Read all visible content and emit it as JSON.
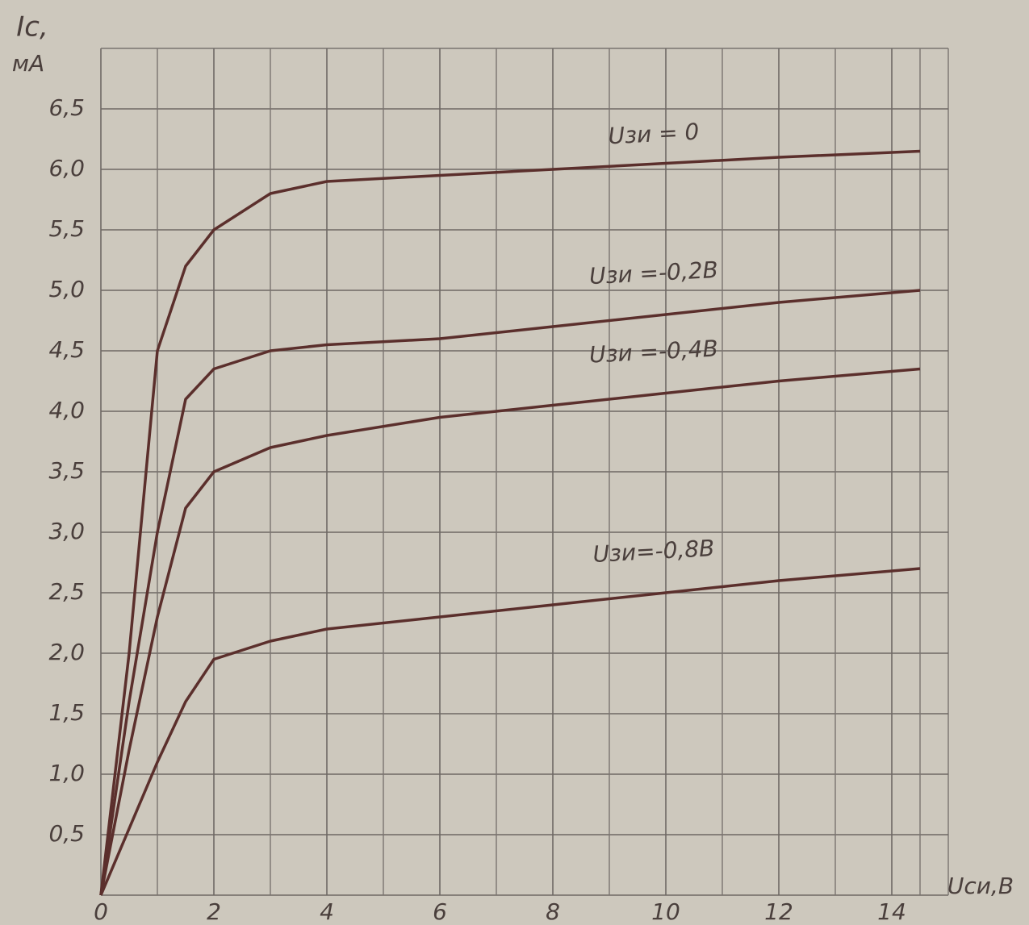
{
  "chart_data": {
    "type": "line",
    "y_label": "Ic,",
    "y_unit": "мA",
    "x_label": "Uси,В",
    "x": [
      0,
      0.5,
      1,
      1.5,
      2,
      3,
      4,
      6,
      8,
      10,
      12,
      14.5
    ],
    "series": [
      {
        "name": "Uзи = 0",
        "color": "#5b2f2c",
        "values": [
          0,
          2.0,
          4.5,
          5.2,
          5.5,
          5.8,
          5.9,
          5.95,
          6.0,
          6.05,
          6.1,
          6.15
        ]
      },
      {
        "name": "Uзи =-0,2В",
        "color": "#5b2f2c",
        "values": [
          0,
          1.6,
          3.0,
          4.1,
          4.35,
          4.5,
          4.55,
          4.6,
          4.7,
          4.8,
          4.9,
          5.0
        ]
      },
      {
        "name": "Uзи =-0,4В",
        "color": "#5b2f2c",
        "values": [
          0,
          1.2,
          2.3,
          3.2,
          3.5,
          3.7,
          3.8,
          3.95,
          4.05,
          4.15,
          4.25,
          4.35
        ]
      },
      {
        "name": "Uзи=-0,8В",
        "color": "#5b2f2c",
        "values": [
          0,
          0.55,
          1.1,
          1.6,
          1.95,
          2.1,
          2.2,
          2.3,
          2.4,
          2.5,
          2.6,
          2.7
        ]
      }
    ],
    "xlim": [
      0,
      15
    ],
    "ylim": [
      0,
      7
    ],
    "xticks": [
      0,
      2,
      4,
      6,
      8,
      10,
      12,
      14
    ],
    "yticks": [
      {
        "value": 0.5,
        "label": "0,5"
      },
      {
        "value": 1.0,
        "label": "1,0"
      },
      {
        "value": 1.5,
        "label": "1,5"
      },
      {
        "value": 2.0,
        "label": "2,0"
      },
      {
        "value": 2.5,
        "label": "2,5"
      },
      {
        "value": 3.0,
        "label": "3,0"
      },
      {
        "value": 3.5,
        "label": "3,5"
      },
      {
        "value": 4.0,
        "label": "4,0"
      },
      {
        "value": 4.5,
        "label": "4,5"
      },
      {
        "value": 5.0,
        "label": "5,0"
      },
      {
        "value": 5.5,
        "label": "5,5"
      },
      {
        "value": 6.0,
        "label": "6,0"
      },
      {
        "value": 6.5,
        "label": "6,5"
      }
    ],
    "grid": true
  }
}
